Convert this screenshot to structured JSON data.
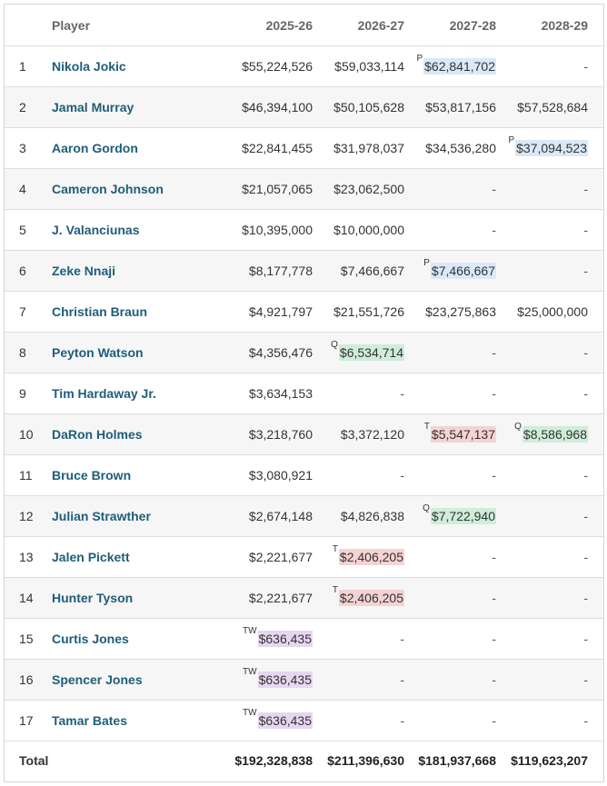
{
  "header": {
    "rank": "",
    "player": "Player",
    "seasons": [
      "2025-26",
      "2026-27",
      "2027-28",
      "2028-29"
    ]
  },
  "colors": {
    "player_option": "#d9e9f7",
    "qualifying_offer": "#cfedd9",
    "team_option": "#f6d2d2",
    "two_way": "#e6d6f0",
    "player_link": "#1f5d7a"
  },
  "rows": [
    {
      "rank": "1",
      "player": "Nikola Jokic",
      "y": [
        {
          "v": "$55,224,526"
        },
        {
          "v": "$59,033,114"
        },
        {
          "v": "$62,841,702",
          "tag": "P"
        },
        {
          "v": "-"
        }
      ]
    },
    {
      "rank": "2",
      "player": "Jamal Murray",
      "y": [
        {
          "v": "$46,394,100"
        },
        {
          "v": "$50,105,628"
        },
        {
          "v": "$53,817,156"
        },
        {
          "v": "$57,528,684"
        }
      ]
    },
    {
      "rank": "3",
      "player": "Aaron Gordon",
      "y": [
        {
          "v": "$22,841,455"
        },
        {
          "v": "$31,978,037"
        },
        {
          "v": "$34,536,280"
        },
        {
          "v": "$37,094,523",
          "tag": "P"
        }
      ]
    },
    {
      "rank": "4",
      "player": "Cameron Johnson",
      "y": [
        {
          "v": "$21,057,065"
        },
        {
          "v": "$23,062,500"
        },
        {
          "v": "-"
        },
        {
          "v": "-"
        }
      ]
    },
    {
      "rank": "5",
      "player": "J. Valanciunas",
      "y": [
        {
          "v": "$10,395,000"
        },
        {
          "v": "$10,000,000"
        },
        {
          "v": "-"
        },
        {
          "v": "-"
        }
      ]
    },
    {
      "rank": "6",
      "player": "Zeke Nnaji",
      "y": [
        {
          "v": "$8,177,778"
        },
        {
          "v": "$7,466,667"
        },
        {
          "v": "$7,466,667",
          "tag": "P"
        },
        {
          "v": "-"
        }
      ]
    },
    {
      "rank": "7",
      "player": "Christian Braun",
      "y": [
        {
          "v": "$4,921,797"
        },
        {
          "v": "$21,551,726"
        },
        {
          "v": "$23,275,863"
        },
        {
          "v": "$25,000,000"
        }
      ]
    },
    {
      "rank": "8",
      "player": "Peyton Watson",
      "y": [
        {
          "v": "$4,356,476"
        },
        {
          "v": "$6,534,714",
          "tag": "Q"
        },
        {
          "v": "-"
        },
        {
          "v": "-"
        }
      ]
    },
    {
      "rank": "9",
      "player": "Tim Hardaway Jr.",
      "y": [
        {
          "v": "$3,634,153"
        },
        {
          "v": "-"
        },
        {
          "v": "-"
        },
        {
          "v": "-"
        }
      ]
    },
    {
      "rank": "10",
      "player": "DaRon Holmes",
      "y": [
        {
          "v": "$3,218,760"
        },
        {
          "v": "$3,372,120"
        },
        {
          "v": "$5,547,137",
          "tag": "T"
        },
        {
          "v": "$8,586,968",
          "tag": "Q"
        }
      ]
    },
    {
      "rank": "11",
      "player": "Bruce Brown",
      "y": [
        {
          "v": "$3,080,921"
        },
        {
          "v": "-"
        },
        {
          "v": "-"
        },
        {
          "v": "-"
        }
      ]
    },
    {
      "rank": "12",
      "player": "Julian Strawther",
      "y": [
        {
          "v": "$2,674,148"
        },
        {
          "v": "$4,826,838"
        },
        {
          "v": "$7,722,940",
          "tag": "Q"
        },
        {
          "v": "-"
        }
      ]
    },
    {
      "rank": "13",
      "player": "Jalen Pickett",
      "y": [
        {
          "v": "$2,221,677"
        },
        {
          "v": "$2,406,205",
          "tag": "T"
        },
        {
          "v": "-"
        },
        {
          "v": "-"
        }
      ]
    },
    {
      "rank": "14",
      "player": "Hunter Tyson",
      "y": [
        {
          "v": "$2,221,677"
        },
        {
          "v": "$2,406,205",
          "tag": "T"
        },
        {
          "v": "-"
        },
        {
          "v": "-"
        }
      ]
    },
    {
      "rank": "15",
      "player": "Curtis Jones",
      "y": [
        {
          "v": "$636,435",
          "tag": "TW"
        },
        {
          "v": "-"
        },
        {
          "v": "-"
        },
        {
          "v": "-"
        }
      ]
    },
    {
      "rank": "16",
      "player": "Spencer Jones",
      "y": [
        {
          "v": "$636,435",
          "tag": "TW"
        },
        {
          "v": "-"
        },
        {
          "v": "-"
        },
        {
          "v": "-"
        }
      ]
    },
    {
      "rank": "17",
      "player": "Tamar Bates",
      "y": [
        {
          "v": "$636,435",
          "tag": "TW"
        },
        {
          "v": "-"
        },
        {
          "v": "-"
        },
        {
          "v": "-"
        }
      ]
    }
  ],
  "totals": {
    "label": "Total",
    "values": [
      "$192,328,838",
      "$211,396,630",
      "$181,937,668",
      "$119,623,207"
    ]
  }
}
